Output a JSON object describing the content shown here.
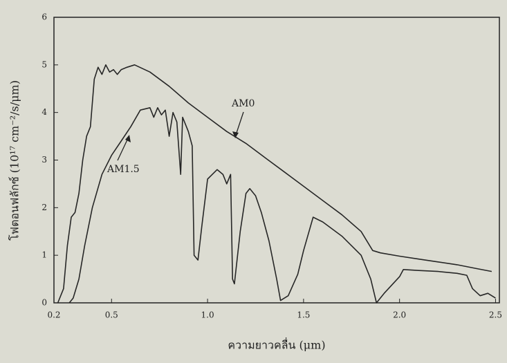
{
  "chart_data": {
    "type": "line",
    "xlabel": "ความยาวคลื่น (μm)",
    "ylabel": "โฟตอนฟลักซ์ (10¹⁷ cm⁻²/s/μm)",
    "annotations": [
      "AM0",
      "AM1.5"
    ],
    "xlim": [
      0.2,
      2.52
    ],
    "ylim": [
      0,
      6
    ],
    "xticks": [
      0.2,
      0.5,
      {
        "value": 1,
        "label": "1.0"
      },
      1.5,
      {
        "value": 2,
        "label": "2.0"
      },
      2.5
    ],
    "yticks": [
      0,
      1,
      2,
      3,
      4,
      5,
      6
    ],
    "grid": false,
    "series": [
      {
        "name": "AM0",
        "color": "#262626",
        "x": [
          0.22,
          0.25,
          0.27,
          0.29,
          0.31,
          0.33,
          0.35,
          0.37,
          0.39,
          0.41,
          0.43,
          0.45,
          0.47,
          0.49,
          0.51,
          0.53,
          0.55,
          0.58,
          0.62,
          0.7,
          0.8,
          0.9,
          1.0,
          1.1,
          1.2,
          1.3,
          1.4,
          1.5,
          1.6,
          1.7,
          1.8,
          1.86,
          1.9,
          2.0,
          2.1,
          2.2,
          2.3,
          2.4,
          2.48
        ],
        "values": [
          0,
          0.3,
          1.2,
          1.8,
          1.9,
          2.3,
          3.0,
          3.5,
          3.7,
          4.7,
          4.95,
          4.8,
          5.0,
          4.85,
          4.9,
          4.8,
          4.9,
          4.95,
          5.0,
          4.85,
          4.55,
          4.2,
          3.9,
          3.6,
          3.35,
          3.05,
          2.75,
          2.45,
          2.15,
          1.85,
          1.5,
          1.1,
          1.05,
          0.98,
          0.92,
          0.86,
          0.8,
          0.72,
          0.66
        ]
      },
      {
        "name": "AM1.5",
        "color": "#262626",
        "x": [
          0.28,
          0.3,
          0.33,
          0.36,
          0.4,
          0.45,
          0.5,
          0.55,
          0.6,
          0.65,
          0.7,
          0.72,
          0.74,
          0.76,
          0.78,
          0.8,
          0.82,
          0.84,
          0.86,
          0.87,
          0.9,
          0.92,
          0.93,
          0.95,
          0.97,
          1.0,
          1.05,
          1.08,
          1.1,
          1.12,
          1.13,
          1.14,
          1.17,
          1.2,
          1.22,
          1.25,
          1.28,
          1.32,
          1.36,
          1.38,
          1.42,
          1.47,
          1.5,
          1.55,
          1.6,
          1.7,
          1.8,
          1.85,
          1.88,
          1.92,
          2.0,
          2.02,
          2.1,
          2.2,
          2.3,
          2.35,
          2.38,
          2.42,
          2.46,
          2.5
        ],
        "values": [
          0,
          0.1,
          0.5,
          1.2,
          2.0,
          2.7,
          3.1,
          3.4,
          3.7,
          4.05,
          4.1,
          3.9,
          4.1,
          3.95,
          4.05,
          3.5,
          4.0,
          3.8,
          2.7,
          3.9,
          3.6,
          3.3,
          1.0,
          0.9,
          1.6,
          2.6,
          2.8,
          2.7,
          2.5,
          2.7,
          0.5,
          0.4,
          1.5,
          2.3,
          2.4,
          2.25,
          1.9,
          1.3,
          0.5,
          0.05,
          0.15,
          0.6,
          1.1,
          1.8,
          1.7,
          1.4,
          1.0,
          0.5,
          0,
          0.2,
          0.55,
          0.7,
          0.68,
          0.66,
          0.62,
          0.58,
          0.3,
          0.15,
          0.2,
          0.1
        ]
      }
    ]
  }
}
